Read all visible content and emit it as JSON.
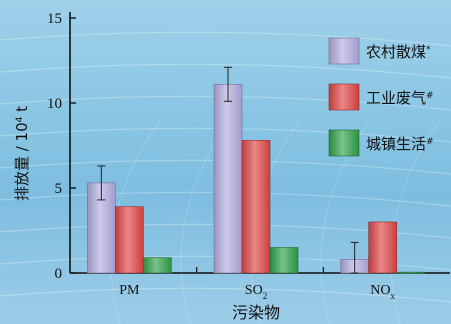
{
  "chart_data": {
    "type": "bar",
    "categories": [
      "PM",
      "SO2",
      "NOx"
    ],
    "category_display": [
      {
        "base": "PM",
        "sub": ""
      },
      {
        "base": "SO",
        "sub": "2"
      },
      {
        "base": "NO",
        "sub": "x"
      }
    ],
    "series": [
      {
        "name": "农村散煤",
        "marker": "*",
        "color": "#b3aee0",
        "values": [
          5.3,
          11.1,
          0.8
        ],
        "errors": [
          1.0,
          1.0,
          1.0
        ]
      },
      {
        "name": "工业废气",
        "marker": "#",
        "color": "#e04646",
        "values": [
          3.9,
          7.8,
          3.0
        ]
      },
      {
        "name": "城镇生活",
        "marker": "#",
        "color": "#2fa24a",
        "values": [
          0.9,
          1.5,
          0.05
        ]
      }
    ],
    "ylabel": {
      "text": "排放量 / 10",
      "sup": "4",
      "unit": " t"
    },
    "xlabel": "污染物",
    "ylim": [
      0,
      15
    ],
    "yticks": [
      0,
      5,
      10,
      15
    ],
    "legend_position": "top-right",
    "grid": false
  }
}
